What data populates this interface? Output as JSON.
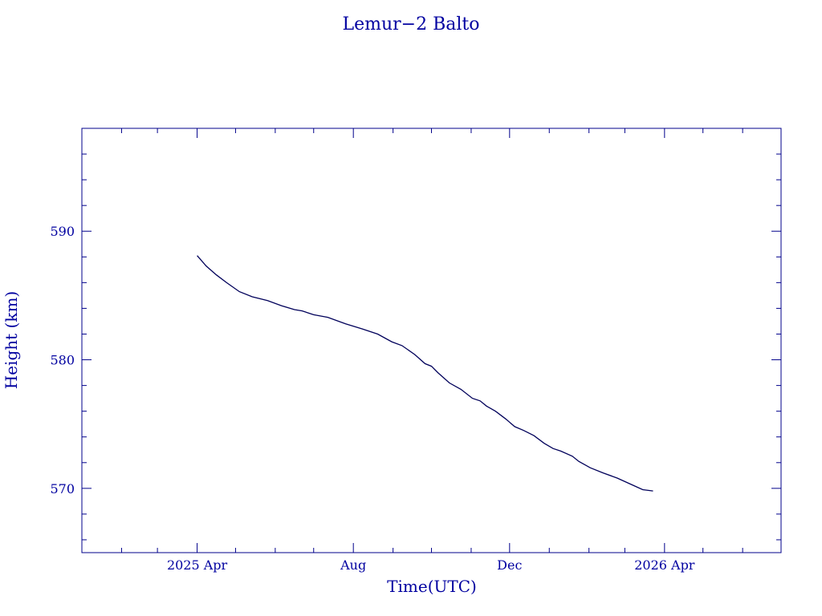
{
  "chart_data": {
    "type": "line",
    "title": "Lemur−2 Balto",
    "xlabel": "Time(UTC)",
    "ylabel": "Height (km)",
    "x_scale": "time",
    "xlim": [
      "2025-01-01",
      "2026-07-01"
    ],
    "ylim": [
      565,
      598
    ],
    "x_ticks": [
      {
        "date": "2025-04-01",
        "label": "2025 Apr"
      },
      {
        "date": "2025-08-01",
        "label": "Aug"
      },
      {
        "date": "2025-12-01",
        "label": "Dec"
      },
      {
        "date": "2026-04-01",
        "label": "2026 Apr"
      }
    ],
    "y_ticks": [
      570,
      580,
      590
    ],
    "grid": false,
    "color": "#00005a",
    "series": [
      {
        "x": [
          "2025-04-01",
          "2025-04-08",
          "2025-04-16",
          "2025-04-24",
          "2025-05-04",
          "2025-05-14",
          "2025-05-26",
          "2025-06-06",
          "2025-06-16",
          "2025-06-22",
          "2025-07-01",
          "2025-07-12",
          "2025-07-26",
          "2025-08-08",
          "2025-08-20",
          "2025-08-31",
          "2025-09-08",
          "2025-09-18",
          "2025-09-26",
          "2025-10-01",
          "2025-10-06",
          "2025-10-15",
          "2025-10-24",
          "2025-11-02",
          "2025-11-08",
          "2025-11-13",
          "2025-11-20",
          "2025-11-28",
          "2025-12-05",
          "2025-12-12",
          "2025-12-20",
          "2025-12-28",
          "2026-01-04",
          "2026-01-10",
          "2026-01-19",
          "2026-01-24",
          "2026-02-02",
          "2026-02-12",
          "2026-02-23",
          "2026-03-06",
          "2026-03-15",
          "2026-03-23"
        ],
        "y": [
          588.1,
          587.3,
          586.6,
          586.0,
          585.3,
          584.9,
          584.6,
          584.2,
          583.9,
          583.8,
          583.5,
          583.3,
          582.8,
          582.4,
          582.0,
          581.4,
          581.1,
          580.4,
          579.7,
          579.5,
          579.0,
          578.2,
          577.7,
          577.0,
          576.8,
          576.4,
          576.0,
          575.4,
          574.8,
          574.5,
          574.1,
          573.5,
          573.1,
          572.9,
          572.5,
          572.1,
          571.6,
          571.2,
          570.8,
          570.3,
          569.9,
          569.8
        ]
      }
    ]
  }
}
